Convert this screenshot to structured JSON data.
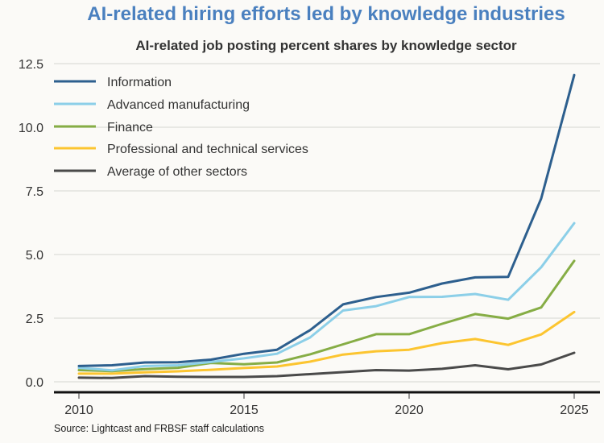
{
  "chart_data": {
    "type": "line",
    "title": "AI-related hiring efforts led by knowledge industries",
    "subtitle": "AI-related job posting percent shares by knowledge sector",
    "xlabel": "",
    "ylabel": "",
    "x": [
      2010,
      2011,
      2012,
      2013,
      2014,
      2015,
      2016,
      2017,
      2018,
      2019,
      2020,
      2021,
      2022,
      2023,
      2024,
      2025
    ],
    "xlim": [
      2009.3,
      2025.8
    ],
    "ylim": [
      -0.45,
      12.7
    ],
    "xticks": [
      2010,
      2015,
      2020,
      2025
    ],
    "xtick_labels": [
      "2010",
      "2015",
      "2020",
      "2025"
    ],
    "yticks": [
      0,
      2.5,
      5,
      7.5,
      10,
      12.5
    ],
    "ytick_labels": [
      "0.0",
      "2.5",
      "5.0",
      "7.5",
      "10.0",
      "12.5"
    ],
    "grid": "horizontal",
    "legend_position": "top-left",
    "series": [
      {
        "name": "Information",
        "color": "#2d5f8e",
        "values": [
          0.62,
          0.65,
          0.76,
          0.77,
          0.87,
          1.1,
          1.26,
          2.03,
          3.04,
          3.33,
          3.5,
          3.86,
          4.1,
          4.12,
          7.2,
          12.05
        ]
      },
      {
        "name": "Advanced manufacturing",
        "color": "#8ccfe8",
        "values": [
          0.55,
          0.45,
          0.62,
          0.65,
          0.78,
          0.92,
          1.1,
          1.74,
          2.8,
          2.97,
          3.33,
          3.34,
          3.45,
          3.22,
          4.5,
          6.23
        ]
      },
      {
        "name": "Finance",
        "color": "#86ad45",
        "values": [
          0.46,
          0.42,
          0.5,
          0.55,
          0.74,
          0.69,
          0.76,
          1.08,
          1.47,
          1.87,
          1.87,
          2.28,
          2.66,
          2.48,
          2.92,
          4.75
        ]
      },
      {
        "name": "Professional and technical services",
        "color": "#fcc530",
        "values": [
          0.32,
          0.32,
          0.37,
          0.41,
          0.47,
          0.54,
          0.6,
          0.79,
          1.07,
          1.2,
          1.26,
          1.52,
          1.68,
          1.45,
          1.86,
          2.74
        ]
      },
      {
        "name": "Average of other sectors",
        "color": "#4a4a4a",
        "values": [
          0.16,
          0.15,
          0.22,
          0.2,
          0.19,
          0.19,
          0.22,
          0.3,
          0.38,
          0.46,
          0.44,
          0.51,
          0.65,
          0.49,
          0.68,
          1.14
        ]
      }
    ]
  },
  "source": "Source: Lightcast and FRBSF staff calculations"
}
